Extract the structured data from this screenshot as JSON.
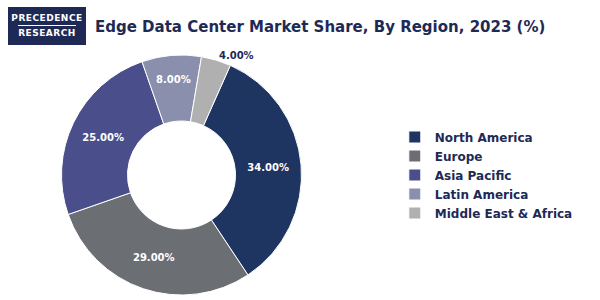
{
  "logo": {
    "lines": [
      "PRECEDENCE",
      "RESEARCH"
    ]
  },
  "chart_data": {
    "type": "pie",
    "title": "Edge Data Center Market Share, By Region, 2023 (%)",
    "categories": [
      "North America",
      "Europe",
      "Asia Pacific",
      "Latin America",
      "Middle East & Africa"
    ],
    "values": [
      34,
      29,
      25,
      8,
      4
    ],
    "value_labels": [
      "34.00%",
      "29.00%",
      "25.00%",
      "8.00%",
      "4.00%"
    ],
    "colors": [
      "#1e3461",
      "#6b6e73",
      "#4a4f8c",
      "#8a8fad",
      "#b0b0b0"
    ],
    "data_labels": true,
    "legend": "right"
  }
}
